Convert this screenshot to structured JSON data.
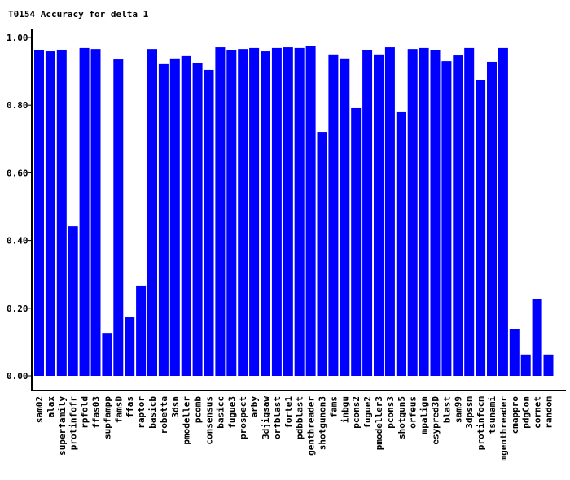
{
  "chart_data": {
    "type": "bar",
    "title": "T0154 Accuracy for delta 1",
    "xlabel": "",
    "ylabel": "",
    "ylim": [
      0,
      1.0
    ],
    "yticks": [
      "0.00",
      "0.20",
      "0.40",
      "0.60",
      "0.80",
      "1.00"
    ],
    "ytick_values": [
      0,
      0.2,
      0.4,
      0.6,
      0.8,
      1.0
    ],
    "bar_color": "#0000ff",
    "categories": [
      "sam02",
      "alax",
      "superfamily",
      "protinfofr",
      "rpfold",
      "ffas03",
      "supfampp",
      "famsD",
      "ffas",
      "raptor",
      "basicb",
      "robetta",
      "3dsn",
      "pmodeller",
      "pcomb",
      "consensus",
      "basicc",
      "fugue3",
      "prospect",
      "arby",
      "3djigsaw",
      "orfblast",
      "forte1",
      "pdbblast",
      "genthreader",
      "shotgunon3",
      "fams",
      "inbgu",
      "pcons2",
      "fugue2",
      "pmodeller3",
      "pcons3",
      "shotgun5",
      "orfeus",
      "mpalign",
      "esypred3D",
      "blast",
      "sam99",
      "3dpssm",
      "protinfocm",
      "tsunami",
      "mgenthreader",
      "cmappro",
      "pdgCon",
      "cornet",
      "random"
    ],
    "values": [
      0.962,
      0.959,
      0.964,
      0.442,
      0.969,
      0.966,
      0.127,
      0.935,
      0.173,
      0.267,
      0.966,
      0.921,
      0.938,
      0.945,
      0.925,
      0.904,
      0.971,
      0.962,
      0.966,
      0.969,
      0.959,
      0.969,
      0.971,
      0.969,
      0.974,
      0.721,
      0.95,
      0.938,
      0.791,
      0.962,
      0.95,
      0.971,
      0.779,
      0.966,
      0.969,
      0.962,
      0.93,
      0.947,
      0.969,
      0.875,
      0.928,
      0.969,
      0.137,
      0.063,
      0.228,
      0.063
    ]
  }
}
